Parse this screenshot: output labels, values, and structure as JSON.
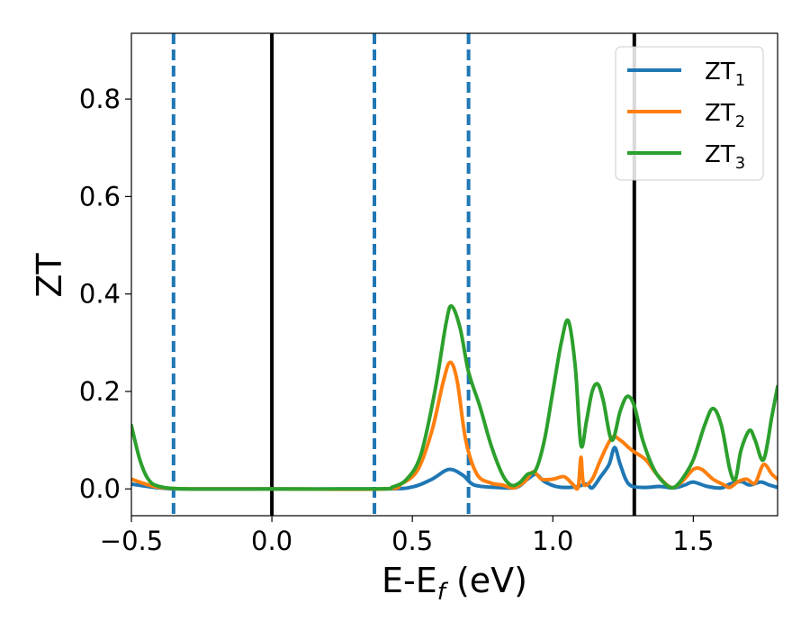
{
  "chart_data": {
    "type": "line",
    "xlabel": "E-E",
    "xlabel_sub": "f",
    "xlabel_unit": " (eV)",
    "ylabel": "ZT",
    "xlim": [
      -0.5,
      1.8
    ],
    "ylim": [
      -0.055,
      0.935
    ],
    "x_ticks": [
      -0.5,
      0.0,
      0.5,
      1.0,
      1.5
    ],
    "x_tick_labels": [
      "−0.5",
      "0.0",
      "0.5",
      "1.0",
      "1.5"
    ],
    "y_ticks": [
      0.0,
      0.2,
      0.4,
      0.6,
      0.8
    ],
    "y_tick_labels": [
      "0.0",
      "0.2",
      "0.4",
      "0.6",
      "0.8"
    ],
    "grid": false,
    "legend_position": "top-right",
    "vertical_lines": [
      {
        "x": 0.0,
        "style": "solid",
        "color": "#000000"
      },
      {
        "x": 1.29,
        "style": "solid",
        "color": "#000000"
      },
      {
        "x": -0.35,
        "style": "dashed",
        "color": "#1f77b4"
      },
      {
        "x": 0.365,
        "style": "dashed",
        "color": "#1f77b4"
      },
      {
        "x": 0.7,
        "style": "dashed",
        "color": "#1f77b4"
      }
    ],
    "series": [
      {
        "name": "ZT",
        "sub": "1",
        "color": "#1f77b4",
        "points": [
          [
            -0.5,
            0.01
          ],
          [
            -0.4,
            0.002
          ],
          [
            -0.3,
            0.0
          ],
          [
            0.0,
            0.0
          ],
          [
            0.4,
            0.0
          ],
          [
            0.5,
            0.004
          ],
          [
            0.57,
            0.02
          ],
          [
            0.63,
            0.04
          ],
          [
            0.68,
            0.028
          ],
          [
            0.72,
            0.008
          ],
          [
            0.8,
            0.003
          ],
          [
            0.87,
            0.003
          ],
          [
            0.91,
            0.02
          ],
          [
            0.94,
            0.03
          ],
          [
            0.97,
            0.015
          ],
          [
            1.02,
            0.004
          ],
          [
            1.08,
            0.004
          ],
          [
            1.12,
            0.01
          ],
          [
            1.14,
            0.002
          ],
          [
            1.17,
            0.025
          ],
          [
            1.2,
            0.05
          ],
          [
            1.22,
            0.085
          ],
          [
            1.24,
            0.05
          ],
          [
            1.27,
            0.01
          ],
          [
            1.32,
            0.003
          ],
          [
            1.38,
            0.005
          ],
          [
            1.43,
            0.002
          ],
          [
            1.47,
            0.008
          ],
          [
            1.5,
            0.014
          ],
          [
            1.55,
            0.005
          ],
          [
            1.6,
            0.002
          ],
          [
            1.63,
            0.01
          ],
          [
            1.67,
            0.015
          ],
          [
            1.7,
            0.008
          ],
          [
            1.74,
            0.014
          ],
          [
            1.77,
            0.008
          ],
          [
            1.8,
            0.003
          ]
        ]
      },
      {
        "name": "ZT",
        "sub": "2",
        "color": "#ff7f0e",
        "points": [
          [
            -0.5,
            0.02
          ],
          [
            -0.45,
            0.01
          ],
          [
            -0.4,
            0.003
          ],
          [
            -0.3,
            0.0
          ],
          [
            0.0,
            0.0
          ],
          [
            0.4,
            0.0
          ],
          [
            0.46,
            0.01
          ],
          [
            0.52,
            0.04
          ],
          [
            0.57,
            0.12
          ],
          [
            0.61,
            0.22
          ],
          [
            0.635,
            0.26
          ],
          [
            0.66,
            0.22
          ],
          [
            0.69,
            0.1
          ],
          [
            0.73,
            0.03
          ],
          [
            0.78,
            0.012
          ],
          [
            0.82,
            0.008
          ],
          [
            0.86,
            0.002
          ],
          [
            0.9,
            0.015
          ],
          [
            0.93,
            0.035
          ],
          [
            0.96,
            0.02
          ],
          [
            1.0,
            0.02
          ],
          [
            1.04,
            0.025
          ],
          [
            1.07,
            0.01
          ],
          [
            1.09,
            0.003
          ],
          [
            1.1,
            0.065
          ],
          [
            1.11,
            0.01
          ],
          [
            1.14,
            0.02
          ],
          [
            1.17,
            0.06
          ],
          [
            1.21,
            0.105
          ],
          [
            1.24,
            0.1
          ],
          [
            1.28,
            0.08
          ],
          [
            1.33,
            0.06
          ],
          [
            1.37,
            0.03
          ],
          [
            1.42,
            0.003
          ],
          [
            1.46,
            0.015
          ],
          [
            1.5,
            0.04
          ],
          [
            1.53,
            0.04
          ],
          [
            1.57,
            0.02
          ],
          [
            1.61,
            0.008
          ],
          [
            1.63,
            0.003
          ],
          [
            1.66,
            0.015
          ],
          [
            1.69,
            0.02
          ],
          [
            1.72,
            0.012
          ],
          [
            1.75,
            0.05
          ],
          [
            1.78,
            0.03
          ],
          [
            1.8,
            0.02
          ]
        ]
      },
      {
        "name": "ZT",
        "sub": "3",
        "color": "#2ca02c",
        "points": [
          [
            -0.5,
            0.13
          ],
          [
            -0.47,
            0.06
          ],
          [
            -0.44,
            0.02
          ],
          [
            -0.4,
            0.005
          ],
          [
            -0.3,
            0.0
          ],
          [
            0.0,
            0.0
          ],
          [
            0.38,
            0.0
          ],
          [
            0.43,
            0.004
          ],
          [
            0.48,
            0.02
          ],
          [
            0.53,
            0.07
          ],
          [
            0.58,
            0.2
          ],
          [
            0.62,
            0.34
          ],
          [
            0.64,
            0.375
          ],
          [
            0.67,
            0.33
          ],
          [
            0.7,
            0.24
          ],
          [
            0.74,
            0.17
          ],
          [
            0.78,
            0.09
          ],
          [
            0.82,
            0.03
          ],
          [
            0.85,
            0.008
          ],
          [
            0.88,
            0.012
          ],
          [
            0.91,
            0.03
          ],
          [
            0.94,
            0.04
          ],
          [
            0.97,
            0.1
          ],
          [
            1.0,
            0.2
          ],
          [
            1.03,
            0.3
          ],
          [
            1.055,
            0.345
          ],
          [
            1.08,
            0.25
          ],
          [
            1.1,
            0.09
          ],
          [
            1.12,
            0.14
          ],
          [
            1.14,
            0.2
          ],
          [
            1.16,
            0.215
          ],
          [
            1.18,
            0.18
          ],
          [
            1.21,
            0.1
          ],
          [
            1.24,
            0.16
          ],
          [
            1.265,
            0.19
          ],
          [
            1.29,
            0.17
          ],
          [
            1.32,
            0.1
          ],
          [
            1.36,
            0.04
          ],
          [
            1.4,
            0.01
          ],
          [
            1.43,
            0.003
          ],
          [
            1.46,
            0.02
          ],
          [
            1.5,
            0.06
          ],
          [
            1.54,
            0.13
          ],
          [
            1.57,
            0.165
          ],
          [
            1.6,
            0.13
          ],
          [
            1.63,
            0.04
          ],
          [
            1.65,
            0.02
          ],
          [
            1.67,
            0.08
          ],
          [
            1.7,
            0.12
          ],
          [
            1.72,
            0.1
          ],
          [
            1.75,
            0.06
          ],
          [
            1.78,
            0.15
          ],
          [
            1.8,
            0.21
          ]
        ]
      }
    ]
  }
}
